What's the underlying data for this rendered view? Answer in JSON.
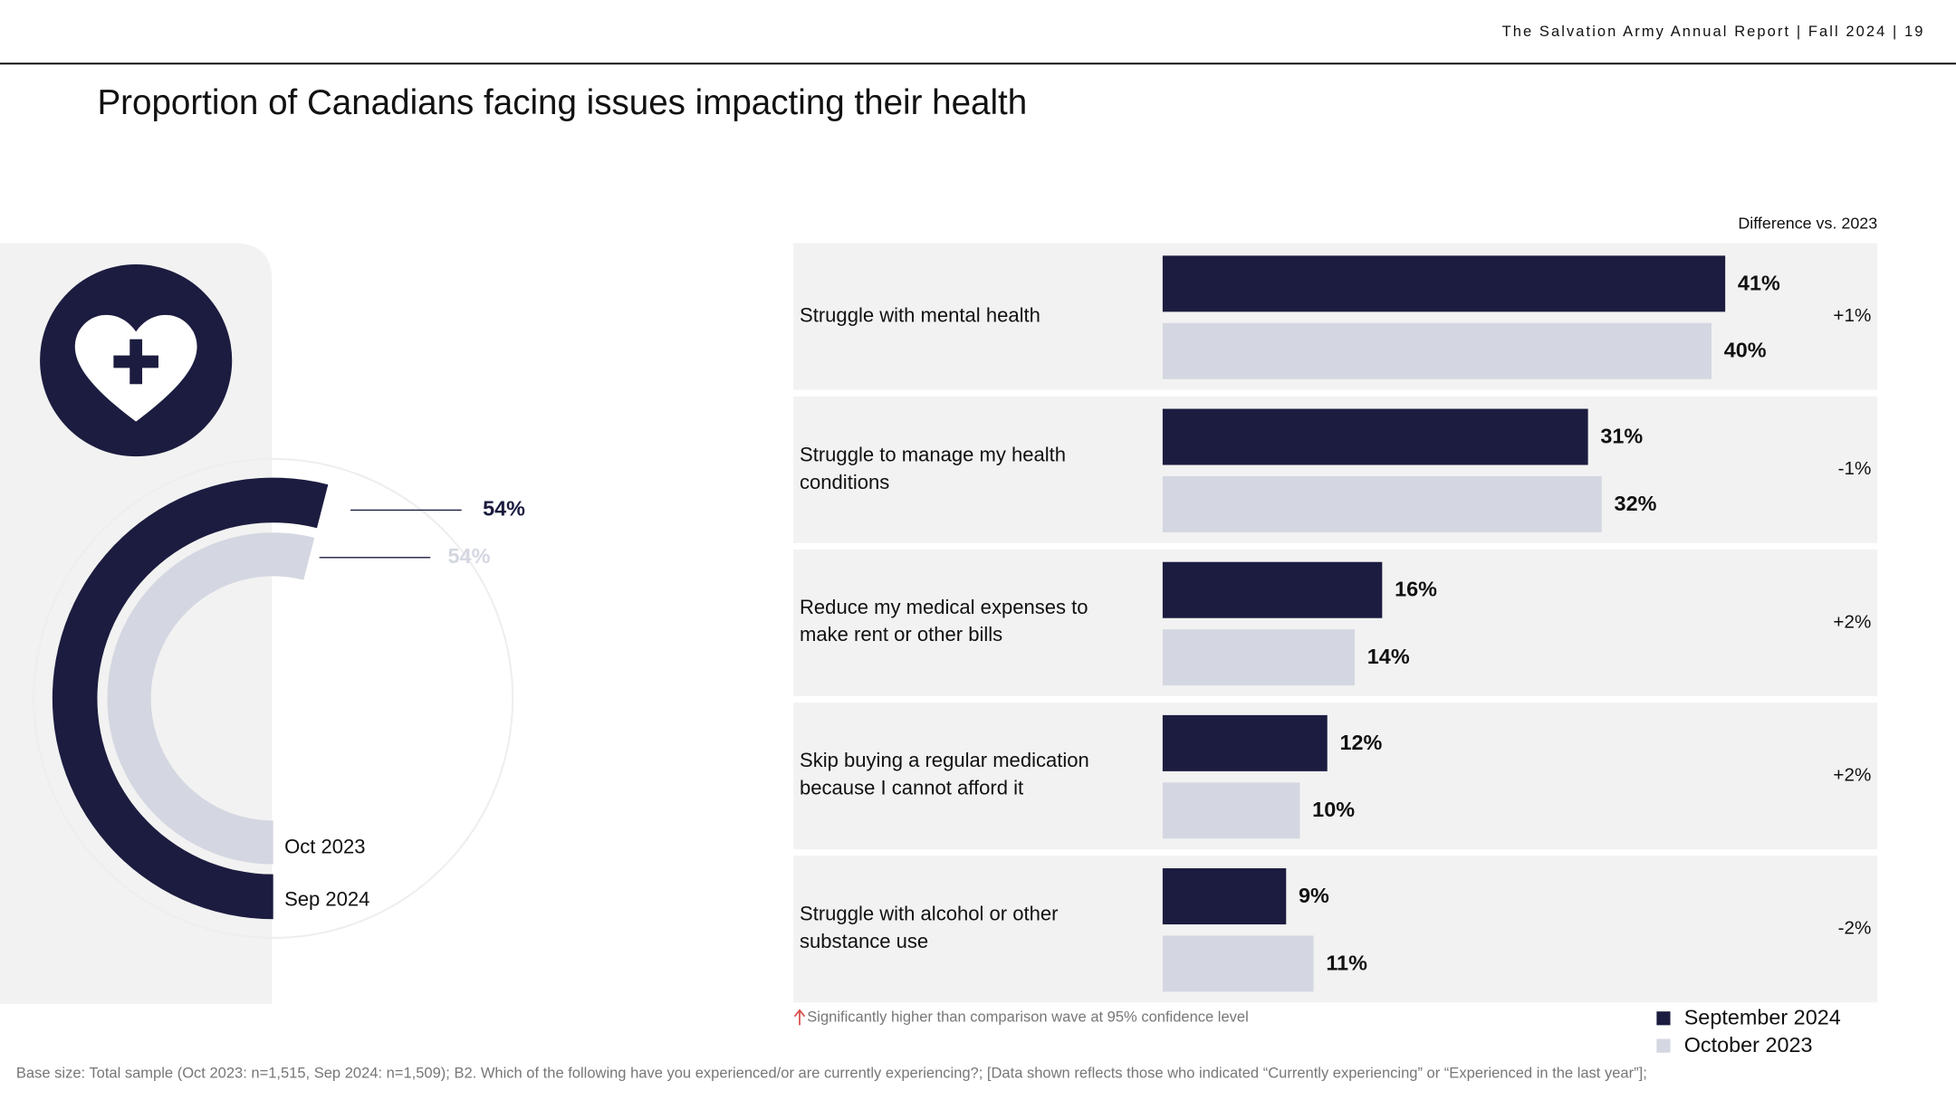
{
  "header": "The Salvation Army Annual Report | Fall 2024 | 19",
  "title": "Proportion of Canadians facing issues impacting their health",
  "chart_data": [
    {
      "type": "donut",
      "series": [
        {
          "name": "Sep 2024",
          "color": "#1b1c3f",
          "values": [
            54
          ],
          "value_labels": [
            "54%"
          ]
        },
        {
          "name": "Oct 2023",
          "color": "#d4d7e1",
          "values": [
            54
          ],
          "value_labels": [
            "54%"
          ]
        }
      ]
    },
    {
      "type": "bar",
      "orientation": "horizontal",
      "categories": [
        "Struggle with mental health",
        "Struggle to manage my health conditions",
        "Reduce my medical expenses to make rent or other bills",
        "Skip buying a regular medication because I cannot afford it",
        "Struggle with alcohol or other substance use"
      ],
      "series": [
        {
          "name": "September 2024",
          "color": "#1b1c3f",
          "values": [
            41,
            31,
            16,
            12,
            9
          ],
          "value_labels": [
            "41%",
            "31%",
            "16%",
            "12%",
            "9%"
          ]
        },
        {
          "name": "October 2023",
          "color": "#d4d7e1",
          "values": [
            40,
            32,
            14,
            10,
            11
          ],
          "value_labels": [
            "40%",
            "32%",
            "14%",
            "10%",
            "11%"
          ]
        }
      ],
      "xlim": [
        0,
        52
      ],
      "difference_title": "Difference vs. 2023",
      "differences": [
        {
          "value": 1,
          "label": "+1%"
        },
        {
          "value": -1,
          "label": "-1%"
        },
        {
          "value": 2,
          "label": "+2%"
        },
        {
          "value": 2,
          "label": "+2%"
        },
        {
          "value": -2,
          "label": "-2%"
        }
      ],
      "footnote": "Significantly higher than comparison wave at 95% confidence level",
      "legend": "bottom-right"
    }
  ],
  "base_note": "Base size: Total sample (Oct 2023: n=1,515, Sep 2024: n=1,509); B2. Which of the following have you experienced/or are currently experiencing?; [Data shown reflects those who indicated “Currently experiencing” or “Experienced in the last year”];"
}
